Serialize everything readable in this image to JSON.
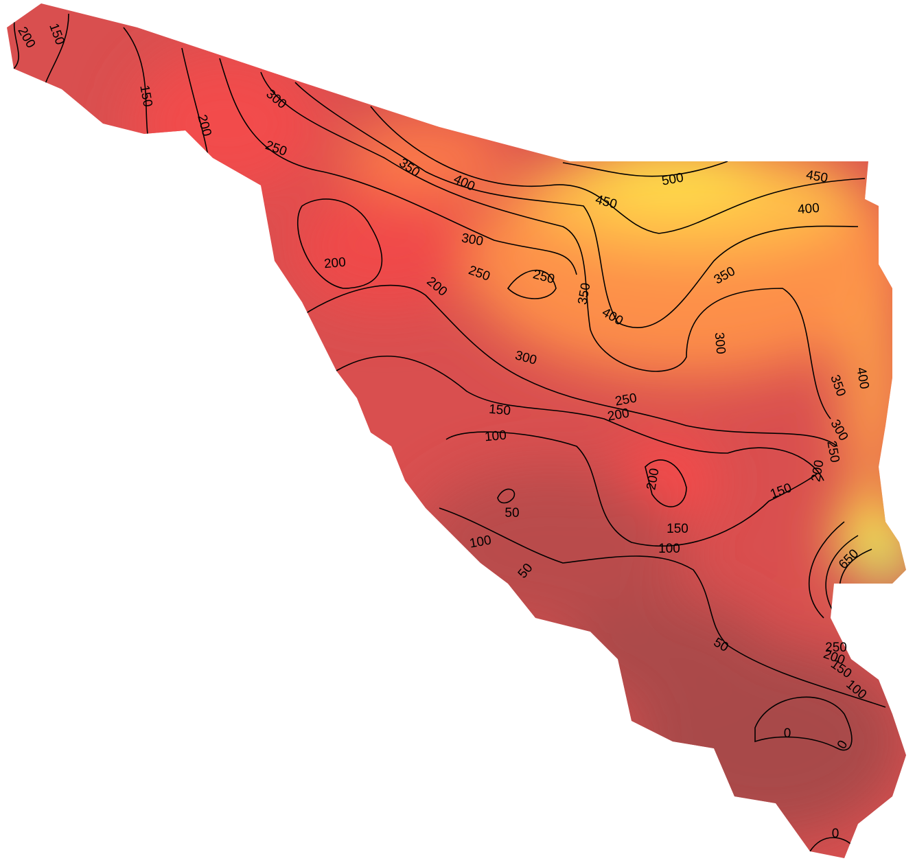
{
  "contour_labels": [
    200,
    150,
    150,
    200,
    300,
    250,
    350,
    400,
    500,
    450,
    450,
    400,
    300,
    200,
    250,
    250,
    200,
    350,
    400,
    350,
    300,
    300,
    350,
    400,
    250,
    150,
    200,
    300,
    250,
    200,
    100,
    200,
    150,
    50,
    150,
    100,
    100,
    50,
    650,
    50,
    250,
    200,
    150,
    100,
    0,
    0,
    0
  ]
}
